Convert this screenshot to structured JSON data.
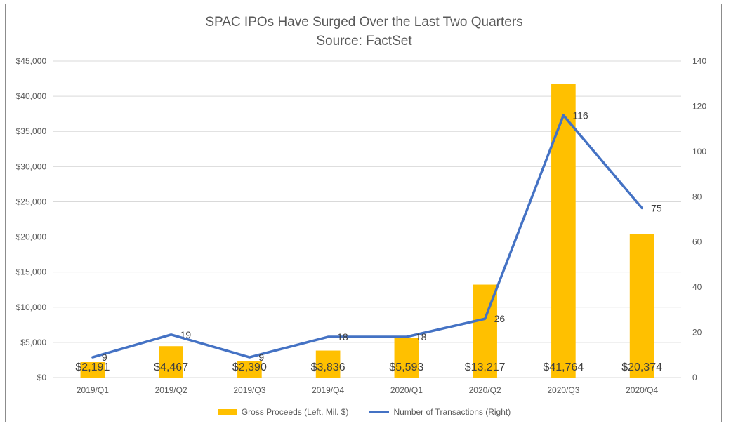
{
  "chart_data": {
    "type": "bar",
    "title": "SPAC IPOs Have Surged Over the Last Two Quarters",
    "subtitle": "Source: FactSet",
    "categories": [
      "2019/Q1",
      "2019/Q2",
      "2019/Q3",
      "2019/Q4",
      "2020/Q1",
      "2020/Q2",
      "2020/Q3",
      "2020/Q4"
    ],
    "series": [
      {
        "name": "Gross Proceeds (Left, Mil. $)",
        "type": "bar",
        "axis": "left",
        "color": "#ffc000",
        "values": [
          2191,
          4467,
          2390,
          3836,
          5593,
          13217,
          41764,
          20374
        ],
        "labels": [
          "$2,191",
          "$4,467",
          "$2,390",
          "$3,836",
          "$5,593",
          "$13,217",
          "$41,764",
          "$20,374"
        ]
      },
      {
        "name": "Number of Transactions (Right)",
        "type": "line",
        "axis": "right",
        "color": "#4472c4",
        "values": [
          9,
          19,
          9,
          18,
          18,
          26,
          116,
          75
        ],
        "labels": [
          "9",
          "19",
          "9",
          "18",
          "18",
          "26",
          "116",
          "75"
        ]
      }
    ],
    "y_left": {
      "range": [
        0,
        45000
      ],
      "ticks": [
        0,
        5000,
        10000,
        15000,
        20000,
        25000,
        30000,
        35000,
        40000,
        45000
      ],
      "tick_labels": [
        "$0",
        "$5,000",
        "$10,000",
        "$15,000",
        "$20,000",
        "$25,000",
        "$30,000",
        "$35,000",
        "$40,000",
        "$45,000"
      ]
    },
    "y_right": {
      "range": [
        0,
        140
      ],
      "ticks": [
        0,
        20,
        40,
        60,
        80,
        100,
        120,
        140
      ],
      "tick_labels": [
        "0",
        "20",
        "40",
        "60",
        "80",
        "100",
        "120",
        "140"
      ]
    },
    "grid": true,
    "legend_position": "bottom"
  }
}
